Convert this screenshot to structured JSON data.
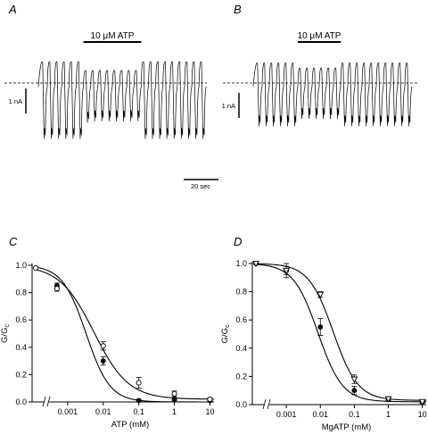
{
  "chart_data": [
    {
      "panel": "A",
      "type": "line",
      "annotations": {
        "drug_label": "10 μM ATP",
        "scale_current": "1 nA",
        "scale_time": "20 sec"
      },
      "trace": {
        "sweeps": 23,
        "drug_sweeps": [
          6,
          13
        ],
        "baseline": 0,
        "peak_nA": [
          0.9,
          0.9,
          0.9,
          0.9,
          0.9,
          0.9,
          0.55,
          0.55,
          0.55,
          0.55,
          0.55,
          0.55,
          0.55,
          0.55,
          0.9,
          0.9,
          0.9,
          0.9,
          0.9,
          0.9,
          0.9,
          0.9,
          0.9
        ],
        "trough_nA": [
          -1.8,
          -1.8,
          -1.8,
          -1.8,
          -1.8,
          -1.8,
          -1.15,
          -1.1,
          -1.1,
          -1.1,
          -1.1,
          -1.1,
          -1.1,
          -1.1,
          -1.8,
          -1.8,
          -1.8,
          -1.8,
          -1.8,
          -1.8,
          -1.8,
          -1.8,
          -1.8
        ]
      }
    },
    {
      "panel": "B",
      "type": "line",
      "annotations": {
        "drug_label": "10 μM ATP",
        "scale_current": "1 nA"
      },
      "trace": {
        "sweeps": 22,
        "drug_sweeps": [
          6,
          11
        ],
        "baseline": 0,
        "peak_nA": [
          0.85,
          0.85,
          0.85,
          0.85,
          0.85,
          0.85,
          0.65,
          0.65,
          0.65,
          0.65,
          0.65,
          0.65,
          0.85,
          0.85,
          0.85,
          0.85,
          0.85,
          0.85,
          0.85,
          0.85,
          0.85,
          0.85
        ],
        "trough_nA": [
          -1.3,
          -1.3,
          -1.3,
          -1.3,
          -1.3,
          -1.3,
          -1.0,
          -1.0,
          -1.0,
          -1.0,
          -1.0,
          -1.0,
          -1.3,
          -1.3,
          -1.3,
          -1.3,
          -1.3,
          -1.3,
          -1.3,
          -1.3,
          -1.3,
          -1.3
        ]
      }
    },
    {
      "panel": "C",
      "type": "scatter",
      "xlabel": "ATP (mM)",
      "ylabel_main": "G/G",
      "ylabel_sub": "c",
      "xscale": "log",
      "xlim": [
        0.0001,
        13
      ],
      "ylim": [
        0,
        1.0
      ],
      "xticks": [
        0.001,
        0.01,
        0.1,
        1,
        10
      ],
      "xtick_labels": [
        "0.001",
        "0.01",
        "0.1",
        "1",
        "10"
      ],
      "yticks": [
        0,
        0.2,
        0.4,
        0.6,
        0.8,
        1.0
      ],
      "ytick_labels": [
        "0.0",
        "0.2",
        "0.4",
        "0.6",
        "0.8",
        "1.0"
      ],
      "series": [
        {
          "marker": "filled-circle",
          "x": [
            0,
            0.0005,
            0.01,
            0.1,
            1,
            10
          ],
          "y": [
            0.98,
            0.85,
            0.3,
            0.01,
            0.02,
            0.01
          ],
          "err": [
            0,
            0.02,
            0.03,
            0.01,
            0.01,
            0.01
          ],
          "fit": {
            "ic50": 0.0033,
            "hill": 1.3,
            "floor": 0
          }
        },
        {
          "marker": "open-circle",
          "x": [
            0,
            0.0005,
            0.01,
            0.1,
            1,
            10
          ],
          "y": [
            0.98,
            0.83,
            0.41,
            0.14,
            0.06,
            0.02
          ],
          "err": [
            0,
            0.02,
            0.03,
            0.04,
            0.02,
            0.01
          ],
          "fit": {
            "ic50": 0.0055,
            "hill": 0.9,
            "floor": 0.02
          }
        }
      ]
    },
    {
      "panel": "D",
      "type": "scatter",
      "xlabel": "MgATP (mM)",
      "ylabel_main": "G/G",
      "ylabel_sub": "c",
      "xscale": "log",
      "xlim": [
        0.0001,
        13
      ],
      "ylim": [
        0,
        1.0
      ],
      "xticks": [
        0.001,
        0.01,
        0.1,
        1,
        10
      ],
      "xtick_labels": [
        "0.001",
        "0.01",
        "0.1",
        "1",
        "10"
      ],
      "yticks": [
        0,
        0.2,
        0.4,
        0.6,
        0.8,
        1.0
      ],
      "ytick_labels": [
        "0.0",
        "0.2",
        "0.4",
        "0.6",
        "0.8",
        "1.0"
      ],
      "series": [
        {
          "marker": "filled-circle",
          "x": [
            0,
            0.001,
            0.01,
            0.1,
            1,
            10
          ],
          "y": [
            1.0,
            0.95,
            0.55,
            0.1,
            0.04,
            0.02
          ],
          "err": [
            0,
            0.05,
            0.06,
            0.03,
            0.01,
            0.01
          ],
          "fit": {
            "ic50": 0.0085,
            "hill": 1.2,
            "floor": 0.02
          }
        },
        {
          "marker": "open-triangle-down",
          "x": [
            0,
            0.001,
            0.01,
            0.1,
            1,
            10
          ],
          "y": [
            1.0,
            0.95,
            0.78,
            0.18,
            0.04,
            0.02
          ],
          "err": [
            0,
            0.03,
            0.02,
            0.03,
            0.01,
            0.01
          ],
          "fit": {
            "ic50": 0.024,
            "hill": 1.2,
            "floor": 0.03
          }
        }
      ]
    }
  ]
}
